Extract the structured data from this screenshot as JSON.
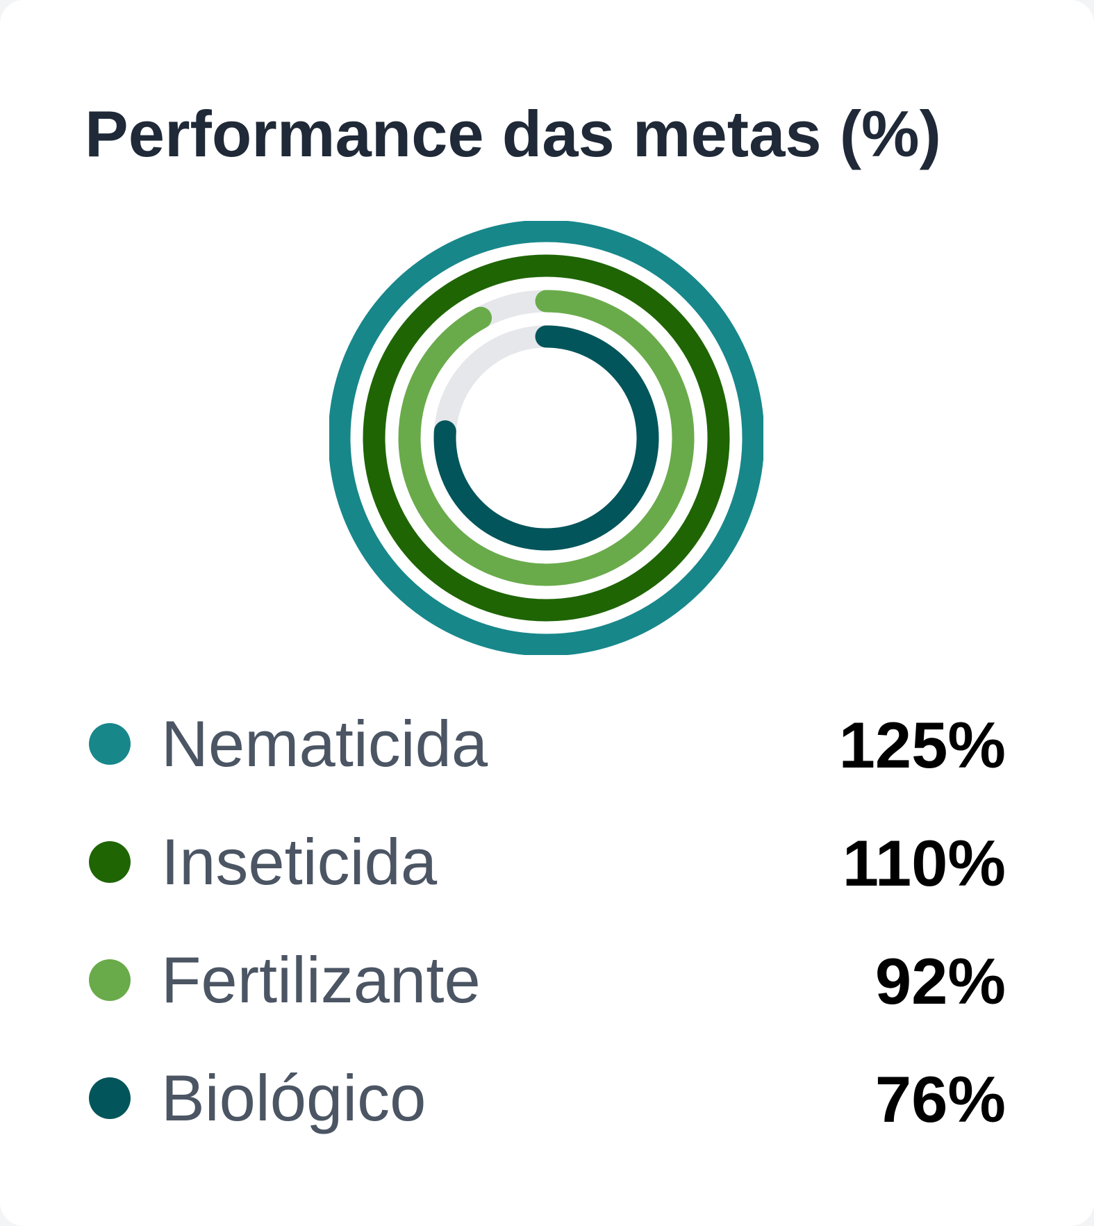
{
  "title": "Performance das metas (%)",
  "colors": {
    "track": "#e5e7eb",
    "title": "#1f2937",
    "label": "#4b5563",
    "value": "#000000"
  },
  "chart_data": {
    "type": "radial-bar",
    "title": "Performance das metas (%)",
    "max": 100,
    "series": [
      {
        "name": "Nematicida",
        "value": 125,
        "value_label": "125%",
        "color": "#17878a"
      },
      {
        "name": "Inseticida",
        "value": 110,
        "value_label": "110%",
        "color": "#1f6504"
      },
      {
        "name": "Fertilizante",
        "value": 92,
        "value_label": "92%",
        "color": "#69ab4a"
      },
      {
        "name": "Biológico",
        "value": 76,
        "value_label": "76%",
        "color": "#02555a"
      }
    ]
  }
}
